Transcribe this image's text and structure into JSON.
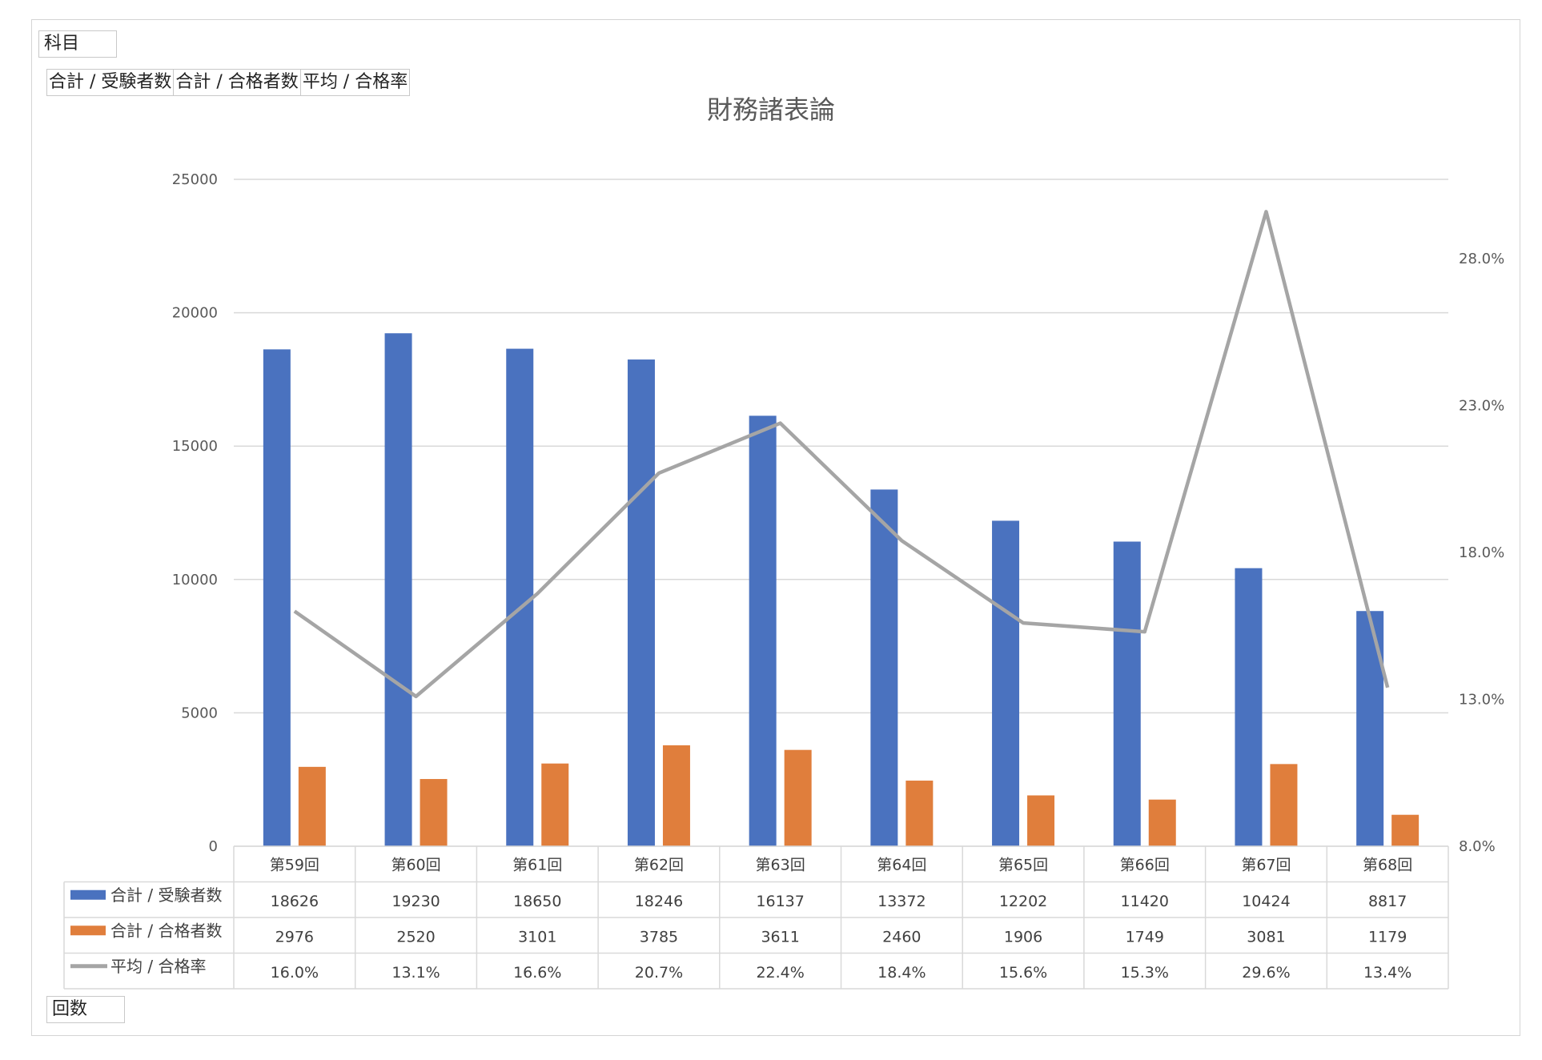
{
  "filters": {
    "subject_label": "科目",
    "values_buttons": [
      "合計 / 受験者数",
      "合計 / 合格者数",
      "平均 / 合格率"
    ],
    "axis_label": "回数"
  },
  "colors": {
    "series1": "#4A72BF",
    "series2": "#E07E3C",
    "series3": "#A5A5A5",
    "grid": "#D9D9D9"
  },
  "chart_data": {
    "type": "bar",
    "title": "財務諸表論",
    "categories": [
      "第59回",
      "第60回",
      "第61回",
      "第62回",
      "第63回",
      "第64回",
      "第65回",
      "第66回",
      "第67回",
      "第68回"
    ],
    "series": [
      {
        "name": "合計 / 受験者数",
        "type": "bar",
        "axis": "left",
        "values": [
          18626,
          19230,
          18650,
          18246,
          16137,
          13372,
          12202,
          11420,
          10424,
          8817
        ]
      },
      {
        "name": "合計 / 合格者数",
        "type": "bar",
        "axis": "left",
        "values": [
          2976,
          2520,
          3101,
          3785,
          3611,
          2460,
          1906,
          1749,
          3081,
          1179
        ]
      },
      {
        "name": "平均 / 合格率",
        "type": "line",
        "axis": "right",
        "values": [
          16.0,
          13.1,
          16.6,
          20.7,
          22.4,
          18.4,
          15.6,
          15.3,
          29.6,
          13.4
        ],
        "labels": [
          "16.0%",
          "13.1%",
          "16.6%",
          "20.7%",
          "22.4%",
          "18.4%",
          "15.6%",
          "15.3%",
          "29.6%",
          "13.4%"
        ]
      }
    ],
    "y_left": {
      "ylim": [
        0,
        25000
      ],
      "ticks": [
        "0",
        "5000",
        "10000",
        "15000",
        "20000",
        "25000"
      ]
    },
    "y_right": {
      "ylim": [
        8.0,
        30.7
      ],
      "ticks": [
        "8.0%",
        "13.0%",
        "18.0%",
        "23.0%",
        "28.0%"
      ],
      "tick_values": [
        8,
        13,
        18,
        23,
        28
      ]
    },
    "grid": true,
    "data_table": true
  }
}
